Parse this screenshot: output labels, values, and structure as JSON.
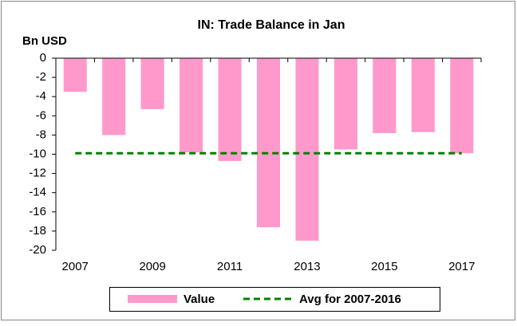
{
  "chart_data": {
    "type": "bar",
    "title": "IN: Trade Balance in Jan",
    "y_label": "Bn USD",
    "categories": [
      "2007",
      null,
      "2009",
      null,
      "2011",
      null,
      "2013",
      null,
      "2015",
      null,
      "2017"
    ],
    "series": [
      {
        "name": "Value",
        "type": "bar",
        "color": "#ff99cc",
        "values": [
          -3.5,
          -8.0,
          -5.3,
          -9.8,
          -10.7,
          -17.6,
          -19.0,
          -9.5,
          -7.8,
          -7.7,
          -9.9
        ]
      },
      {
        "name": "Avg for 2007-2016",
        "type": "line",
        "color": "#008000",
        "values": [
          -9.9,
          -9.9,
          -9.9,
          -9.9,
          -9.9,
          -9.9,
          -9.9,
          -9.9,
          -9.9,
          -9.9,
          -9.9
        ]
      }
    ],
    "ylim": [
      -20,
      0
    ],
    "yticks": [
      0,
      -2,
      -4,
      -6,
      -8,
      -10,
      -12,
      -14,
      -16,
      -18,
      -20
    ],
    "legend": "bottom"
  }
}
